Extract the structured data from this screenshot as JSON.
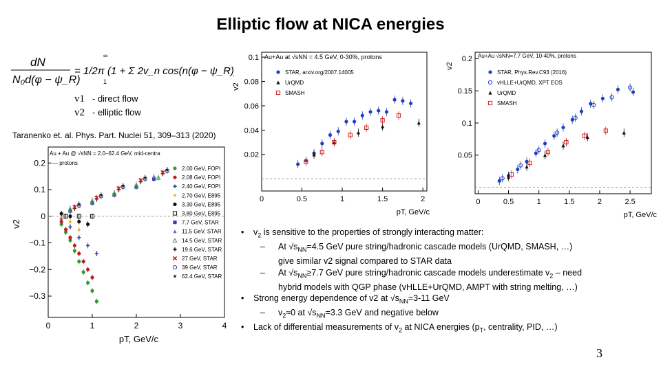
{
  "slide": {
    "title": "Elliptic flow at NICA energies",
    "page_number": "3",
    "reference": "Taranenko et. al. Phys. Part. Nuclei 51, 309–313 (2020)"
  },
  "formula": {
    "lhs_num": "dN",
    "lhs_den": "N₀d(φ − ψ_R)",
    "rhs": "= 1/2π (1 + Σ 2v_n cos(n(φ − ψ_R)))",
    "sum_top": "∞",
    "sum_bottom": "1"
  },
  "definitions": [
    {
      "symbol": "v1",
      "text": "- direct flow"
    },
    {
      "symbol": "v2",
      "text": "- elliptic flow"
    }
  ],
  "bullets": {
    "b1": {
      "lead": "v",
      "lead_sub": "2",
      "rest": " is sensitive to the properties of strongly interacting matter:"
    },
    "b1a": {
      "p1": "At √s",
      "sub": "NN",
      "p2": "=4.5 GeV pure string/hadronic cascade models (UrQMD, SMASH, …)",
      "cont": "give similar v2  signal compared to STAR data"
    },
    "b1b": {
      "p1": "At √s",
      "sub": "NN",
      "p2": "≥7.7 GeV pure string/hadronic cascade models underestimate v",
      "sub2": "2",
      "p3": " – need",
      "cont": "hybrid models with QGP phase (vHLLE+UrQMD, AMPT with string melting, …)"
    },
    "b2": {
      "p1": "Strong energy dependence of v2 at √s",
      "sub": "NN",
      "p2": "=3-11 GeV"
    },
    "b2a": {
      "p1": "v",
      "sub": "2",
      "p2": "≈0 at √s",
      "sub2": "NN",
      "p3": "=3.3 GeV and negative below"
    },
    "b3": {
      "p1": "Lack of differential measurements of v",
      "sub": "2",
      "p2": " at NICA energies (p",
      "sub2": "T",
      "p3": ", centrality, PID, …)"
    }
  },
  "chart_data": [
    {
      "type": "scatter",
      "title": "Au + Au @ √sNN = 2.0–62.4 GeV, mid-centra",
      "subtitle": "protons",
      "xlabel": "pT, GeV/c",
      "ylabel": "v2",
      "xlim": [
        0,
        4
      ],
      "ylim": [
        -0.38,
        0.26
      ],
      "xticks": [
        "0",
        "1",
        "2",
        "3",
        "4"
      ],
      "yticks": [
        "0.2",
        "0.1",
        "0",
        "−0.1",
        "−0.2",
        "−0.3"
      ],
      "ytick_values": [
        0.2,
        0.1,
        0,
        -0.1,
        -0.2,
        -0.3
      ],
      "legend_position": "right",
      "series": [
        {
          "name": "2.00 GeV, FOPI",
          "color": "#2a9d2a",
          "marker": "circle",
          "points": [
            [
              0.3,
              -0.03
            ],
            [
              0.4,
              -0.06
            ],
            [
              0.5,
              -0.09
            ],
            [
              0.6,
              -0.13
            ],
            [
              0.7,
              -0.17
            ],
            [
              0.8,
              -0.21
            ],
            [
              0.9,
              -0.25
            ],
            [
              1.0,
              -0.28
            ],
            [
              1.1,
              -0.32
            ]
          ]
        },
        {
          "name": "2.08 GeV, FOPI",
          "color": "#c02020",
          "marker": "circle",
          "points": [
            [
              0.3,
              -0.02
            ],
            [
              0.4,
              -0.05
            ],
            [
              0.5,
              -0.08
            ],
            [
              0.6,
              -0.11
            ],
            [
              0.7,
              -0.14
            ],
            [
              0.8,
              -0.17
            ],
            [
              0.9,
              -0.2
            ],
            [
              1.0,
              -0.23
            ]
          ]
        },
        {
          "name": "2.40 GeV, FOPI",
          "color": "#3040a0",
          "marker": "cross",
          "points": [
            [
              0.3,
              -0.01
            ],
            [
              0.5,
              -0.04
            ],
            [
              0.7,
              -0.08
            ],
            [
              0.9,
              -0.11
            ],
            [
              1.1,
              -0.14
            ]
          ]
        },
        {
          "name": "2.70 GeV, E895",
          "color": "#e0b000",
          "marker": "star",
          "points": [
            [
              0.3,
              0.0
            ],
            [
              0.5,
              -0.02
            ],
            [
              0.7,
              -0.05
            ]
          ]
        },
        {
          "name": "3.30 GeV, E895",
          "color": "#111111",
          "marker": "circle",
          "points": [
            [
              0.3,
              0.01
            ],
            [
              0.5,
              0.0
            ],
            [
              0.7,
              -0.02
            ],
            [
              0.9,
              -0.03
            ]
          ]
        },
        {
          "name": "3.80 GeV, E895",
          "color": "#111111",
          "marker": "square-open",
          "points": [
            [
              0.4,
              0.0
            ],
            [
              0.7,
              0.0
            ],
            [
              1.0,
              0.0
            ]
          ]
        },
        {
          "name": "7.7 GeV, STAR",
          "color": "#3040c0",
          "marker": "square",
          "points": [
            [
              0.5,
              0.02
            ],
            [
              1.0,
              0.05
            ],
            [
              1.5,
              0.08
            ],
            [
              2.0,
              0.11
            ],
            [
              2.4,
              0.14
            ]
          ]
        },
        {
          "name": "11.5 GeV, STAR",
          "color": "#8060c0",
          "marker": "triangle",
          "points": [
            [
              0.5,
              0.03
            ],
            [
              1.0,
              0.06
            ],
            [
              1.5,
              0.09
            ],
            [
              2.0,
              0.12
            ],
            [
              2.4,
              0.15
            ]
          ]
        },
        {
          "name": "14.5 GeV, STAR",
          "color": "#30a030",
          "marker": "triangle-open",
          "points": [
            [
              0.5,
              0.025
            ],
            [
              1.0,
              0.055
            ],
            [
              1.5,
              0.085
            ],
            [
              2.0,
              0.115
            ],
            [
              2.5,
              0.145
            ]
          ]
        },
        {
          "name": "19.6 GeV, STAR",
          "color": "#111111",
          "marker": "cross",
          "points": [
            [
              0.6,
              0.03
            ],
            [
              1.1,
              0.065
            ],
            [
              1.6,
              0.1
            ],
            [
              2.1,
              0.13
            ],
            [
              2.6,
              0.16
            ]
          ]
        },
        {
          "name": "27 GeV, STAR",
          "color": "#c02020",
          "marker": "x",
          "points": [
            [
              0.6,
              0.035
            ],
            [
              1.1,
              0.07
            ],
            [
              1.6,
              0.105
            ],
            [
              2.1,
              0.135
            ],
            [
              2.6,
              0.165
            ]
          ]
        },
        {
          "name": "39 GeV, STAR",
          "color": "#3040a0",
          "marker": "circle-open",
          "points": [
            [
              0.7,
              0.04
            ],
            [
              1.2,
              0.075
            ],
            [
              1.7,
              0.11
            ],
            [
              2.2,
              0.14
            ],
            [
              2.7,
              0.17
            ]
          ]
        },
        {
          "name": "62.4 GeV, STAR",
          "color": "#111111",
          "marker": "star",
          "points": [
            [
              0.7,
              0.045
            ],
            [
              1.2,
              0.08
            ],
            [
              1.7,
              0.115
            ],
            [
              2.2,
              0.145
            ],
            [
              2.7,
              0.175
            ]
          ]
        }
      ]
    },
    {
      "type": "scatter",
      "title": "Au+Au at √sNN = 4.5 GeV, 0-30%, protons",
      "xlabel": "pT, GeV/c",
      "ylabel": "v2",
      "xlim": [
        0,
        2.05
      ],
      "ylim": [
        -0.01,
        0.104
      ],
      "xticks": [
        "0",
        "0.5",
        "1",
        "1.5",
        "2"
      ],
      "xtick_values": [
        0,
        0.5,
        1,
        1.5,
        2
      ],
      "yticks": [
        "0.02",
        "0.04",
        "0.06",
        "0.08",
        "0.1"
      ],
      "ytick_values": [
        0.02,
        0.04,
        0.06,
        0.08,
        0.1
      ],
      "legend_position": "top-left",
      "series": [
        {
          "name": "STAR, arxiv.org/2007.14005",
          "color": "#1f3fbf",
          "marker": "circle",
          "points": [
            [
              0.45,
              0.012
            ],
            [
              0.55,
              0.015
            ],
            [
              0.65,
              0.021
            ],
            [
              0.75,
              0.029
            ],
            [
              0.85,
              0.036
            ],
            [
              0.95,
              0.039
            ],
            [
              1.05,
              0.047
            ],
            [
              1.15,
              0.047
            ],
            [
              1.25,
              0.052
            ],
            [
              1.35,
              0.055
            ],
            [
              1.45,
              0.056
            ],
            [
              1.55,
              0.055
            ],
            [
              1.65,
              0.065
            ],
            [
              1.75,
              0.064
            ],
            [
              1.85,
              0.062
            ]
          ]
        },
        {
          "name": "UrQMD",
          "color": "#111111",
          "marker": "triangle",
          "points": [
            [
              0.65,
              0.02
            ],
            [
              0.9,
              0.03
            ],
            [
              1.2,
              0.038
            ],
            [
              1.5,
              0.043
            ],
            [
              1.95,
              0.046
            ]
          ]
        },
        {
          "name": "SMASH",
          "color": "#cc2020",
          "marker": "square-open",
          "points": [
            [
              0.55,
              0.014
            ],
            [
              0.75,
              0.022
            ],
            [
              0.9,
              0.03
            ],
            [
              1.1,
              0.036
            ],
            [
              1.3,
              0.042
            ],
            [
              1.5,
              0.048
            ],
            [
              1.7,
              0.052
            ]
          ]
        }
      ]
    },
    {
      "type": "scatter",
      "title": "Au+Au √sNN=7.7 GeV, 10-40%, protons",
      "xlabel": "pT, GeV/c",
      "ylabel": "v2",
      "xlim": [
        -0.05,
        2.85
      ],
      "ylim": [
        -0.01,
        0.21
      ],
      "xticks": [
        "0",
        "0.5",
        "1",
        "1.5",
        "2",
        "2.5"
      ],
      "xtick_values": [
        0,
        0.5,
        1,
        1.5,
        2,
        2.5
      ],
      "yticks": [
        "0.05",
        "0.1",
        "0.15",
        "0.2"
      ],
      "ytick_values": [
        0.05,
        0.1,
        0.15,
        0.2
      ],
      "legend_position": "top-left",
      "series": [
        {
          "name": "STAR, Phys.Rev.C93 (2016)",
          "color": "#1f3fbf",
          "marker": "circle",
          "points": [
            [
              0.35,
              0.01
            ],
            [
              0.5,
              0.018
            ],
            [
              0.65,
              0.028
            ],
            [
              0.8,
              0.04
            ],
            [
              0.95,
              0.053
            ],
            [
              1.1,
              0.068
            ],
            [
              1.25,
              0.08
            ],
            [
              1.4,
              0.093
            ],
            [
              1.55,
              0.105
            ],
            [
              1.7,
              0.118
            ],
            [
              1.85,
              0.13
            ],
            [
              2.05,
              0.138
            ],
            [
              2.3,
              0.152
            ],
            [
              2.55,
              0.148
            ]
          ]
        },
        {
          "name": "vHLLE+UrQMD, XPT EOS",
          "color": "#1f3fbf",
          "marker": "circle-open",
          "points": [
            [
              0.4,
              0.014
            ],
            [
              0.7,
              0.034
            ],
            [
              1.0,
              0.058
            ],
            [
              1.3,
              0.085
            ],
            [
              1.6,
              0.108
            ],
            [
              1.9,
              0.128
            ],
            [
              2.2,
              0.14
            ],
            [
              2.5,
              0.155
            ]
          ]
        },
        {
          "name": "UrQMD",
          "color": "#111111",
          "marker": "triangle",
          "points": [
            [
              0.5,
              0.016
            ],
            [
              0.8,
              0.032
            ],
            [
              1.1,
              0.05
            ],
            [
              1.4,
              0.065
            ],
            [
              1.8,
              0.078
            ],
            [
              2.4,
              0.085
            ]
          ]
        },
        {
          "name": "SMASH",
          "color": "#cc2020",
          "marker": "square-open",
          "points": [
            [
              0.55,
              0.02
            ],
            [
              0.85,
              0.038
            ],
            [
              1.15,
              0.055
            ],
            [
              1.45,
              0.07
            ],
            [
              1.75,
              0.08
            ],
            [
              2.1,
              0.088
            ]
          ]
        }
      ]
    }
  ]
}
